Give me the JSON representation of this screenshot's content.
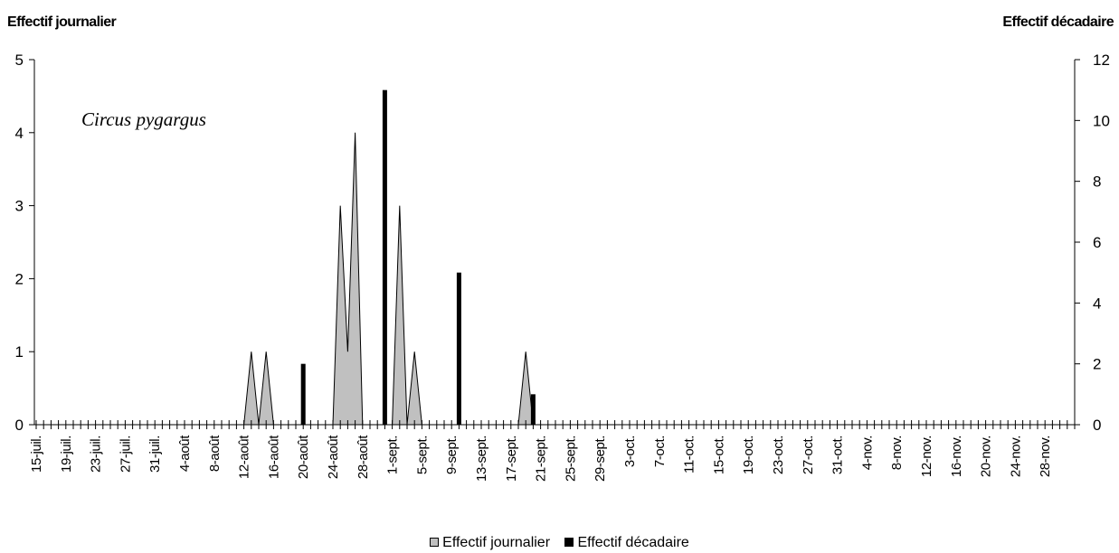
{
  "chart_data": {
    "type": "area",
    "ylabel_left": "Effectif journalier",
    "ylabel_right": "Effectif décadaire",
    "annotation": "Circus pygargus",
    "ylim_left": [
      0,
      5
    ],
    "ylim_right": [
      0,
      12
    ],
    "yticks_left": [
      "0",
      "1",
      "2",
      "3",
      "4",
      "5"
    ],
    "yticks_right": [
      "0",
      "2",
      "4",
      "6",
      "8",
      "10",
      "12"
    ],
    "x_tick_labels": [
      "15-juil.",
      "19-juil.",
      "23-juil.",
      "27-juil.",
      "31-juil.",
      "4-août",
      "8-août",
      "12-août",
      "16-août",
      "20-août",
      "24-août",
      "28-août",
      "1-sept.",
      "5-sept.",
      "9-sept.",
      "13-sept.",
      "17-sept.",
      "21-sept.",
      "25-sept.",
      "29-sept.",
      "3-oct.",
      "7-oct.",
      "11-oct.",
      "15-oct.",
      "19-oct.",
      "23-oct.",
      "27-oct.",
      "31-oct.",
      "4-nov.",
      "8-nov.",
      "12-nov.",
      "16-nov.",
      "20-nov.",
      "24-nov.",
      "28-nov."
    ],
    "series": [
      {
        "name": "Effectif journalier",
        "type": "area",
        "axis": "left",
        "color": "#c0c0c0",
        "x": [
          "13-août",
          "15-août",
          "25-août",
          "26-août",
          "27-août",
          "2-sept.",
          "4-sept.",
          "19-sept."
        ],
        "values": [
          1,
          1,
          3,
          1,
          4,
          3,
          1,
          1
        ]
      },
      {
        "name": "Effectif décadaire",
        "type": "bar",
        "axis": "right",
        "color": "#000000",
        "x": [
          "20-août",
          "31-août",
          "10-sept.",
          "20-sept."
        ],
        "values": [
          2,
          11,
          5,
          1
        ]
      }
    ],
    "legend_position": "bottom"
  }
}
